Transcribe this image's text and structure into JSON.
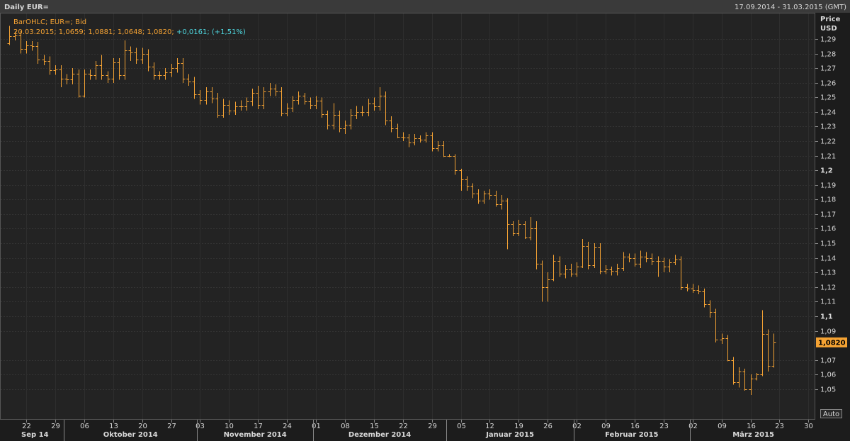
{
  "chart_data": {
    "type": "ohlc",
    "title": "Daily EUR=",
    "subtitle": "17.09.2014 - 31.03.2015 (GMT)",
    "ylabel": "Price",
    "yunit": "USD",
    "legend_title": "BarOHLC; EUR=; Bid",
    "last_bar_text": "20.03.2015; 1,0659; 1,0881; 1,0648; 1,0820;",
    "change_text": "+0,0161; (+1,51%)",
    "last_price": {
      "value": 1.082,
      "label": "1,0820"
    },
    "scale_button": "Auto",
    "color": "#f4a233",
    "grid": true,
    "xlim": [
      "17.09.2014",
      "31.03.2015"
    ],
    "xticks": [
      {
        "value": "22.09.2014",
        "label": "22"
      },
      {
        "value": "29.09.2014",
        "label": "29"
      },
      {
        "value": "06.10.2014",
        "label": "06"
      },
      {
        "value": "13.10.2014",
        "label": "13"
      },
      {
        "value": "20.10.2014",
        "label": "20"
      },
      {
        "value": "27.10.2014",
        "label": "27"
      },
      {
        "value": "03.11.2014",
        "label": "03"
      },
      {
        "value": "10.11.2014",
        "label": "10"
      },
      {
        "value": "17.11.2014",
        "label": "17"
      },
      {
        "value": "24.11.2014",
        "label": "24"
      },
      {
        "value": "01.12.2014",
        "label": "01"
      },
      {
        "value": "08.12.2014",
        "label": "08"
      },
      {
        "value": "15.12.2014",
        "label": "15"
      },
      {
        "value": "22.12.2014",
        "label": "22"
      },
      {
        "value": "29.12.2014",
        "label": "29"
      },
      {
        "value": "05.01.2015",
        "label": "05"
      },
      {
        "value": "12.01.2015",
        "label": "12"
      },
      {
        "value": "19.01.2015",
        "label": "19"
      },
      {
        "value": "26.01.2015",
        "label": "26"
      },
      {
        "value": "02.02.2015",
        "label": "02"
      },
      {
        "value": "09.02.2015",
        "label": "09"
      },
      {
        "value": "16.02.2015",
        "label": "16"
      },
      {
        "value": "23.02.2015",
        "label": "23"
      },
      {
        "value": "02.03.2015",
        "label": "02"
      },
      {
        "value": "09.03.2015",
        "label": "09"
      },
      {
        "value": "16.03.2015",
        "label": "16"
      },
      {
        "value": "23.03.2015",
        "label": "23"
      },
      {
        "value": "30.03.2015",
        "label": "30"
      }
    ],
    "month_labels": [
      "Sep 14",
      "Oktober 2014",
      "November 2014",
      "Dezember 2014",
      "Januar 2015",
      "Februar 2015",
      "März 2015"
    ],
    "ylim": [
      1.029,
      1.308
    ],
    "yticks": [
      {
        "value": 1.05,
        "label": "1,05"
      },
      {
        "value": 1.06,
        "label": "1,06"
      },
      {
        "value": 1.07,
        "label": "1,07"
      },
      {
        "value": 1.09,
        "label": "1,09"
      },
      {
        "value": 1.1,
        "label": "1,1"
      },
      {
        "value": 1.11,
        "label": "1,11"
      },
      {
        "value": 1.12,
        "label": "1,12"
      },
      {
        "value": 1.13,
        "label": "1,13"
      },
      {
        "value": 1.14,
        "label": "1,14"
      },
      {
        "value": 1.15,
        "label": "1,15"
      },
      {
        "value": 1.16,
        "label": "1,16"
      },
      {
        "value": 1.17,
        "label": "1,17"
      },
      {
        "value": 1.18,
        "label": "1,18"
      },
      {
        "value": 1.19,
        "label": "1,19"
      },
      {
        "value": 1.2,
        "label": "1,2"
      },
      {
        "value": 1.21,
        "label": "1,21"
      },
      {
        "value": 1.22,
        "label": "1,22"
      },
      {
        "value": 1.23,
        "label": "1,23"
      },
      {
        "value": 1.24,
        "label": "1,24"
      },
      {
        "value": 1.25,
        "label": "1,25"
      },
      {
        "value": 1.26,
        "label": "1,26"
      },
      {
        "value": 1.27,
        "label": "1,27"
      },
      {
        "value": 1.28,
        "label": "1,28"
      },
      {
        "value": 1.29,
        "label": "1,29"
      }
    ],
    "x": [
      "17.09.2014",
      "18.09.2014",
      "19.09.2014",
      "22.09.2014",
      "23.09.2014",
      "24.09.2014",
      "25.09.2014",
      "26.09.2014",
      "29.09.2014",
      "30.09.2014",
      "01.10.2014",
      "02.10.2014",
      "03.10.2014",
      "06.10.2014",
      "07.10.2014",
      "08.10.2014",
      "09.10.2014",
      "10.10.2014",
      "13.10.2014",
      "14.10.2014",
      "15.10.2014",
      "16.10.2014",
      "17.10.2014",
      "20.10.2014",
      "21.10.2014",
      "22.10.2014",
      "23.10.2014",
      "24.10.2014",
      "27.10.2014",
      "28.10.2014",
      "29.10.2014",
      "30.10.2014",
      "31.10.2014",
      "03.11.2014",
      "04.11.2014",
      "05.11.2014",
      "06.11.2014",
      "07.11.2014",
      "10.11.2014",
      "11.11.2014",
      "12.11.2014",
      "13.11.2014",
      "14.11.2014",
      "17.11.2014",
      "18.11.2014",
      "19.11.2014",
      "20.11.2014",
      "21.11.2014",
      "24.11.2014",
      "25.11.2014",
      "26.11.2014",
      "27.11.2014",
      "28.11.2014",
      "01.12.2014",
      "02.12.2014",
      "03.12.2014",
      "04.12.2014",
      "05.12.2014",
      "08.12.2014",
      "09.12.2014",
      "10.12.2014",
      "11.12.2014",
      "12.12.2014",
      "15.12.2014",
      "16.12.2014",
      "17.12.2014",
      "18.12.2014",
      "19.12.2014",
      "22.12.2014",
      "23.12.2014",
      "24.12.2014",
      "25.12.2014",
      "26.12.2014",
      "29.12.2014",
      "30.12.2014",
      "31.12.2014",
      "01.01.2015",
      "02.01.2015",
      "05.01.2015",
      "06.01.2015",
      "07.01.2015",
      "08.01.2015",
      "09.01.2015",
      "12.01.2015",
      "13.01.2015",
      "14.01.2015",
      "15.01.2015",
      "16.01.2015",
      "19.01.2015",
      "20.01.2015",
      "21.01.2015",
      "22.01.2015",
      "23.01.2015",
      "26.01.2015",
      "27.01.2015",
      "28.01.2015",
      "29.01.2015",
      "30.01.2015",
      "02.02.2015",
      "03.02.2015",
      "04.02.2015",
      "05.02.2015",
      "06.02.2015",
      "09.02.2015",
      "10.02.2015",
      "11.02.2015",
      "12.02.2015",
      "13.02.2015",
      "16.02.2015",
      "17.02.2015",
      "18.02.2015",
      "19.02.2015",
      "20.02.2015",
      "23.02.2015",
      "24.02.2015",
      "25.02.2015",
      "26.02.2015",
      "27.02.2015",
      "02.03.2015",
      "03.03.2015",
      "04.03.2015",
      "05.03.2015",
      "06.03.2015",
      "09.03.2015",
      "10.03.2015",
      "11.03.2015",
      "12.03.2015",
      "13.03.2015",
      "16.03.2015",
      "17.03.2015",
      "18.03.2015",
      "19.03.2015",
      "20.03.2015"
    ],
    "open": [
      1.287,
      1.292,
      1.2925,
      1.283,
      1.2855,
      1.285,
      1.276,
      1.275,
      1.2685,
      1.269,
      1.263,
      1.2625,
      1.266,
      1.251,
      1.266,
      1.265,
      1.272,
      1.265,
      1.263,
      1.274,
      1.265,
      1.282,
      1.281,
      1.276,
      1.28,
      1.271,
      1.265,
      1.265,
      1.267,
      1.27,
      1.2735,
      1.263,
      1.261,
      1.252,
      1.248,
      1.254,
      1.249,
      1.238,
      1.245,
      1.241,
      1.244,
      1.244,
      1.247,
      1.253,
      1.245,
      1.254,
      1.256,
      1.254,
      1.239,
      1.243,
      1.248,
      1.251,
      1.247,
      1.245,
      1.2475,
      1.2385,
      1.231,
      1.238,
      1.229,
      1.231,
      1.238,
      1.24,
      1.24,
      1.246,
      1.244,
      1.251,
      1.234,
      1.229,
      1.223,
      1.2225,
      1.219,
      1.222,
      1.221,
      1.224,
      1.215,
      1.217,
      1.21,
      1.21,
      1.2,
      1.194,
      1.189,
      1.184,
      1.179,
      1.184,
      1.183,
      1.177,
      1.179,
      1.163,
      1.157,
      1.163,
      1.154,
      1.16,
      1.136,
      1.12,
      1.125,
      1.138,
      1.129,
      1.132,
      1.129,
      1.134,
      1.148,
      1.135,
      1.147,
      1.131,
      1.132,
      1.131,
      1.133,
      1.141,
      1.14,
      1.136,
      1.141,
      1.14,
      1.138,
      1.138,
      1.134,
      1.137,
      1.139,
      1.12,
      1.119,
      1.118,
      1.117,
      1.108,
      1.103,
      1.084,
      1.085,
      1.07,
      1.055,
      1.062,
      1.05,
      1.057,
      1.06,
      1.088,
      1.0659
    ],
    "high": [
      1.299,
      1.295,
      1.2955,
      1.2885,
      1.2885,
      1.288,
      1.279,
      1.278,
      1.272,
      1.272,
      1.266,
      1.27,
      1.269,
      1.269,
      1.269,
      1.275,
      1.279,
      1.268,
      1.277,
      1.277,
      1.289,
      1.285,
      1.284,
      1.284,
      1.283,
      1.274,
      1.268,
      1.27,
      1.273,
      1.277,
      1.277,
      1.266,
      1.264,
      1.255,
      1.257,
      1.257,
      1.253,
      1.249,
      1.248,
      1.247,
      1.248,
      1.25,
      1.256,
      1.258,
      1.257,
      1.26,
      1.259,
      1.257,
      1.246,
      1.251,
      1.254,
      1.253,
      1.25,
      1.251,
      1.25,
      1.241,
      1.246,
      1.241,
      1.234,
      1.242,
      1.244,
      1.244,
      1.249,
      1.25,
      1.257,
      1.254,
      1.237,
      1.232,
      1.226,
      1.225,
      1.225,
      1.224,
      1.226,
      1.226,
      1.22,
      1.22,
      1.211,
      1.211,
      1.201,
      1.196,
      1.191,
      1.187,
      1.186,
      1.187,
      1.186,
      1.183,
      1.181,
      1.165,
      1.166,
      1.165,
      1.168,
      1.165,
      1.138,
      1.13,
      1.142,
      1.141,
      1.135,
      1.136,
      1.137,
      1.153,
      1.151,
      1.15,
      1.15,
      1.135,
      1.134,
      1.136,
      1.144,
      1.143,
      1.143,
      1.145,
      1.144,
      1.143,
      1.141,
      1.14,
      1.139,
      1.142,
      1.141,
      1.122,
      1.122,
      1.121,
      1.119,
      1.111,
      1.105,
      1.088,
      1.087,
      1.072,
      1.065,
      1.064,
      1.06,
      1.061,
      1.104,
      1.091,
      1.0881
    ],
    "low": [
      1.286,
      1.289,
      1.28,
      1.28,
      1.282,
      1.273,
      1.272,
      1.2655,
      1.2655,
      1.257,
      1.259,
      1.259,
      1.25,
      1.25,
      1.262,
      1.262,
      1.262,
      1.26,
      1.26,
      1.262,
      1.262,
      1.275,
      1.273,
      1.273,
      1.268,
      1.262,
      1.262,
      1.262,
      1.264,
      1.267,
      1.26,
      1.258,
      1.249,
      1.245,
      1.245,
      1.246,
      1.236,
      1.236,
      1.238,
      1.238,
      1.241,
      1.241,
      1.244,
      1.242,
      1.242,
      1.251,
      1.251,
      1.237,
      1.237,
      1.24,
      1.245,
      1.245,
      1.242,
      1.242,
      1.236,
      1.228,
      1.228,
      1.226,
      1.225,
      1.228,
      1.235,
      1.237,
      1.237,
      1.241,
      1.241,
      1.231,
      1.226,
      1.222,
      1.22,
      1.216,
      1.217,
      1.219,
      1.219,
      1.213,
      1.213,
      1.209,
      1.209,
      1.197,
      1.186,
      1.186,
      1.181,
      1.177,
      1.177,
      1.18,
      1.175,
      1.173,
      1.146,
      1.155,
      1.155,
      1.153,
      1.152,
      1.132,
      1.11,
      1.11,
      1.124,
      1.127,
      1.126,
      1.127,
      1.127,
      1.133,
      1.132,
      1.133,
      1.129,
      1.129,
      1.128,
      1.128,
      1.131,
      1.137,
      1.134,
      1.133,
      1.137,
      1.135,
      1.127,
      1.13,
      1.13,
      1.135,
      1.118,
      1.117,
      1.116,
      1.115,
      1.106,
      1.099,
      1.082,
      1.081,
      1.069,
      1.053,
      1.051,
      1.049,
      1.046,
      1.056,
      1.059,
      1.062,
      1.0648
    ],
    "close": [
      1.292,
      1.2925,
      1.283,
      1.2855,
      1.285,
      1.276,
      1.275,
      1.2685,
      1.269,
      1.263,
      1.2625,
      1.266,
      1.251,
      1.266,
      1.265,
      1.272,
      1.265,
      1.263,
      1.274,
      1.265,
      1.282,
      1.281,
      1.276,
      1.28,
      1.271,
      1.265,
      1.265,
      1.267,
      1.27,
      1.2735,
      1.263,
      1.261,
      1.252,
      1.248,
      1.254,
      1.249,
      1.238,
      1.245,
      1.241,
      1.244,
      1.244,
      1.247,
      1.253,
      1.245,
      1.254,
      1.256,
      1.254,
      1.239,
      1.243,
      1.248,
      1.251,
      1.247,
      1.245,
      1.2475,
      1.2385,
      1.231,
      1.238,
      1.229,
      1.231,
      1.238,
      1.24,
      1.24,
      1.246,
      1.244,
      1.251,
      1.234,
      1.229,
      1.223,
      1.2225,
      1.219,
      1.222,
      1.221,
      1.224,
      1.215,
      1.217,
      1.21,
      1.21,
      1.2,
      1.194,
      1.189,
      1.184,
      1.179,
      1.184,
      1.183,
      1.177,
      1.179,
      1.163,
      1.157,
      1.163,
      1.154,
      1.16,
      1.136,
      1.12,
      1.125,
      1.138,
      1.129,
      1.132,
      1.129,
      1.134,
      1.148,
      1.135,
      1.147,
      1.131,
      1.132,
      1.131,
      1.133,
      1.141,
      1.14,
      1.136,
      1.141,
      1.14,
      1.138,
      1.138,
      1.134,
      1.137,
      1.139,
      1.12,
      1.119,
      1.118,
      1.117,
      1.108,
      1.103,
      1.084,
      1.085,
      1.07,
      1.055,
      1.062,
      1.05,
      1.057,
      1.06,
      1.088,
      1.0659,
      1.082
    ]
  }
}
